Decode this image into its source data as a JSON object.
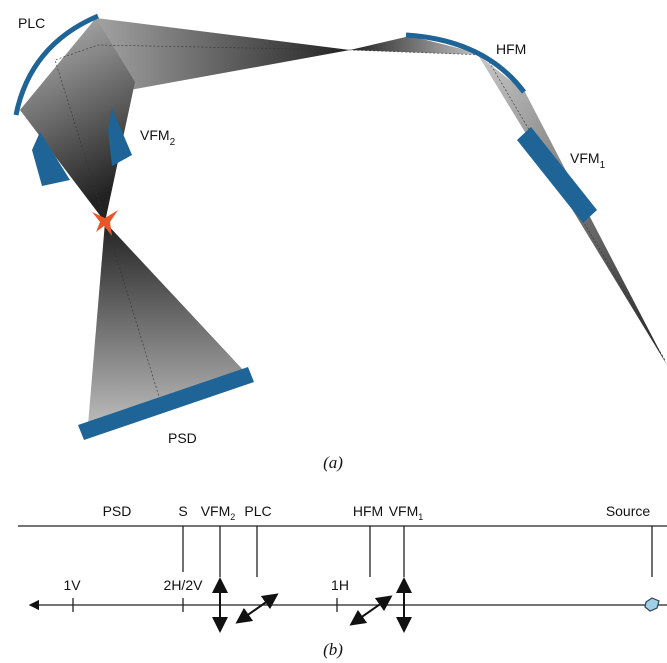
{
  "panel_a": {
    "labels": {
      "plc": "PLC",
      "vfm2": {
        "text": "VFM",
        "sub": "2"
      },
      "hfm": "HFM",
      "vfm1": {
        "text": "VFM",
        "sub": "1"
      },
      "psd": "PSD"
    },
    "caption": "(a)"
  },
  "panel_b": {
    "top_labels": {
      "psd": "PSD",
      "s": "S",
      "vfm2": {
        "text": "VFM",
        "sub": "2"
      },
      "plc": "PLC",
      "hfm": "HFM",
      "vfm1": {
        "text": "VFM",
        "sub": "1"
      },
      "source": "Source"
    },
    "axis_labels": {
      "v1": "1V",
      "h2v2": "2H/2V",
      "h1": "1H"
    },
    "caption": "(b)"
  }
}
